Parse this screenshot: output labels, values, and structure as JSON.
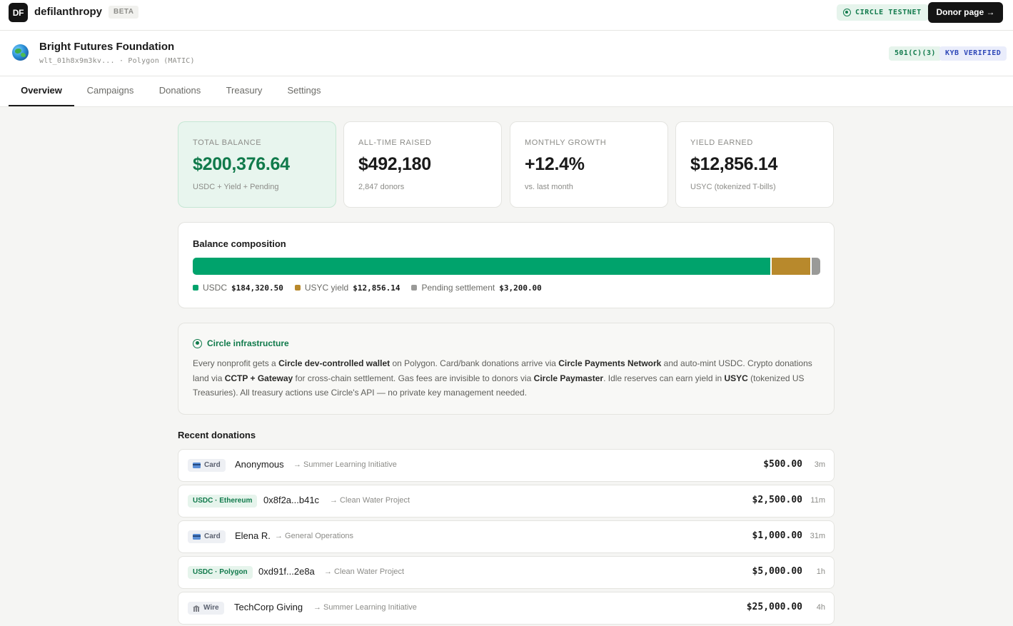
{
  "topbar": {
    "logo_text": "DF",
    "brand": "defilanthropy",
    "beta": "BETA",
    "network_badge": "CIRCLE TESTNET",
    "donor_button": "Donor page →"
  },
  "org": {
    "name": "Bright Futures Foundation",
    "wallet_id": "wlt_01h8x9m3kv...",
    "network": "· Polygon (MATIC)",
    "badges": [
      "501(C)(3)",
      "KYB VERIFIED"
    ]
  },
  "tabs": [
    {
      "label": "Overview",
      "active": true
    },
    {
      "label": "Campaigns",
      "active": false
    },
    {
      "label": "Donations",
      "active": false
    },
    {
      "label": "Treasury",
      "active": false
    },
    {
      "label": "Settings",
      "active": false
    }
  ],
  "stats": [
    {
      "label": "TOTAL BALANCE",
      "value": "$200,376.64",
      "sub": "USDC + Yield + Pending"
    },
    {
      "label": "ALL-TIME RAISED",
      "value": "$492,180",
      "sub": "2,847 donors"
    },
    {
      "label": "MONTHLY GROWTH",
      "value": "+12.4%",
      "sub": "vs. last month"
    },
    {
      "label": "YIELD EARNED",
      "value": "$12,856.14",
      "sub": "USYC (tokenized T-bills)"
    }
  ],
  "composition": {
    "title": "Balance composition",
    "segments": [
      {
        "label": "USDC",
        "value": "$184,320.50",
        "amount": 184320.5,
        "color": "#00a36c"
      },
      {
        "label": "USYC yield",
        "value": "$12,856.14",
        "amount": 12856.14,
        "color": "#b8892c"
      },
      {
        "label": "Pending settlement",
        "value": "$3,200.00",
        "amount": 3200.0,
        "color": "#9a9a98"
      }
    ]
  },
  "infra": {
    "title": "Circle infrastructure",
    "p1": "Every nonprofit gets a ",
    "b1": "Circle dev-controlled wallet",
    "p2": " on Polygon. Card/bank donations arrive via ",
    "b2": "Circle Payments Network",
    "p3": " and auto-mint USDC. Crypto donations land via ",
    "b3": "CCTP + Gateway",
    "p4": " for cross-chain settlement. Gas fees are invisible to donors via ",
    "b4": "Circle Paymaster",
    "p5": ". Idle reserves can earn yield in ",
    "b5": "USYC",
    "p6": " (tokenized US Treasuries). All treasury actions use Circle's API — no private key management needed."
  },
  "recent": {
    "title": "Recent donations",
    "rows": [
      {
        "method": "Card",
        "type": "card",
        "donor": "Anonymous",
        "campaign": "→ Summer Learning Initiative",
        "amount": "$500.00",
        "time": "3m"
      },
      {
        "method": "USDC · Ethereum",
        "type": "usdc",
        "donor": "0x8f2a...b41c",
        "campaign": "→ Clean Water Project",
        "amount": "$2,500.00",
        "time": "11m"
      },
      {
        "method": "Card",
        "type": "card",
        "donor": "Elena R.",
        "campaign": "→ General Operations",
        "amount": "$1,000.00",
        "time": "31m"
      },
      {
        "method": "USDC · Polygon",
        "type": "usdc",
        "donor": "0xd91f...2e8a",
        "campaign": "→ Clean Water Project",
        "amount": "$5,000.00",
        "time": "1h"
      },
      {
        "method": "Wire",
        "type": "wire",
        "donor": "TechCorp Giving",
        "campaign": "→ Summer Learning Initiative",
        "amount": "$25,000.00",
        "time": "4h"
      }
    ]
  }
}
